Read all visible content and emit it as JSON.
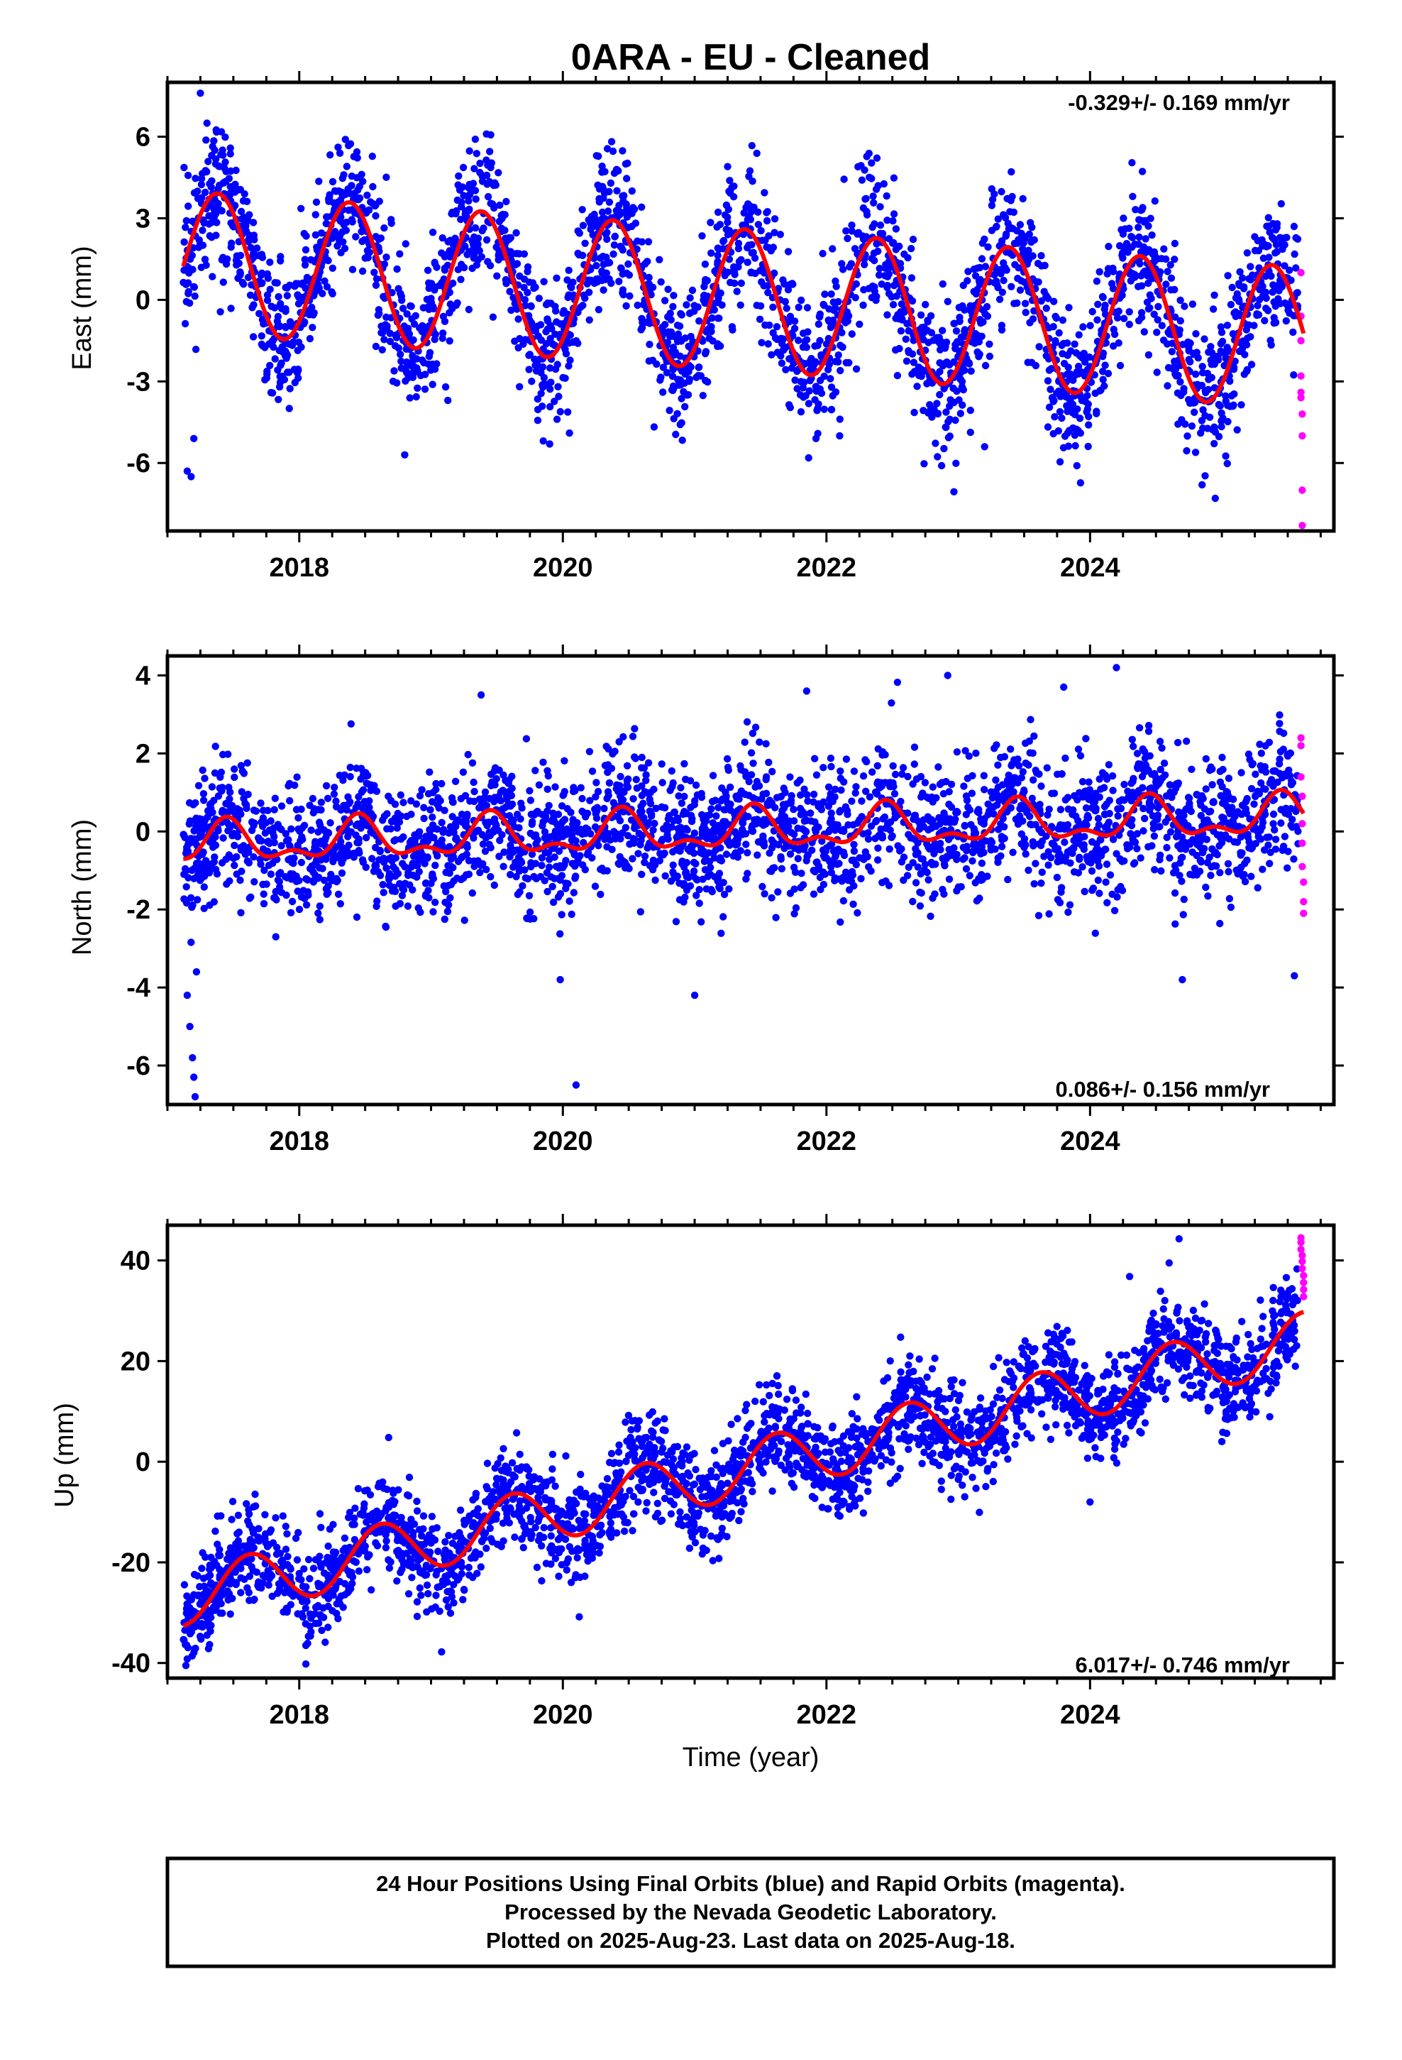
{
  "title": "0ARA  - EU - Cleaned",
  "colors": {
    "final": "#0000ff",
    "rapid": "#ff00ff",
    "model": "#ff0000",
    "frame": "#000000"
  },
  "chart_data": [
    {
      "type": "scatter",
      "id": "east",
      "ylabel": "East (mm)",
      "ylim": [
        -8.5,
        8.0
      ],
      "yticks": [
        "6",
        "3",
        "0",
        "-3",
        "-6"
      ],
      "yticks_values": [
        6,
        3,
        0,
        -3,
        -6
      ],
      "xlim": [
        2017.0,
        2025.85
      ],
      "xticks": [
        "2018",
        "2020",
        "2022",
        "2024"
      ],
      "xticks_values": [
        2018,
        2020,
        2022,
        2024
      ],
      "rate_label": "-0.329+/- 0.169 mm/yr",
      "rate_position": "top-right",
      "model": {
        "offset": 1.4,
        "rate": -0.329,
        "amplitude": 2.6,
        "phase_peak": 0.38,
        "x_start": 2017.12,
        "x_end": 2025.62
      },
      "final_series": {
        "x_start": 2017.12,
        "x_end": 2025.58,
        "noise_sd": 1.3,
        "outliers": [
          [
            2017.15,
            -6.3
          ],
          [
            2017.18,
            -6.5
          ],
          [
            2017.2,
            -5.1
          ],
          [
            2017.25,
            7.6
          ],
          [
            2017.3,
            6.5
          ],
          [
            2018.35,
            5.9
          ],
          [
            2018.8,
            -5.7
          ],
          [
            2019.9,
            -5.3
          ],
          [
            2020.05,
            -4.9
          ],
          [
            2021.25,
            4.9
          ],
          [
            2022.1,
            -5.0
          ],
          [
            2023.2,
            -5.4
          ],
          [
            2023.9,
            -6.1
          ],
          [
            2024.85,
            -6.8
          ],
          [
            2024.95,
            -7.3
          ]
        ]
      },
      "rapid_series": {
        "x": [
          2025.6,
          2025.6,
          2025.6,
          2025.6,
          2025.6,
          2025.6,
          2025.61,
          2025.61,
          2025.61,
          2025.61
        ],
        "y": [
          1.0,
          -0.6,
          -1.5,
          -2.8,
          -3.4,
          -3.6,
          -4.2,
          -5.0,
          -7.0,
          -8.3
        ]
      }
    },
    {
      "type": "scatter",
      "id": "north",
      "ylabel": "North (mm)",
      "ylim": [
        -7.0,
        4.5
      ],
      "yticks": [
        "4",
        "2",
        "0",
        "-2",
        "-4",
        "-6"
      ],
      "yticks_values": [
        4,
        2,
        0,
        -2,
        -4,
        -6
      ],
      "xlim": [
        2017.0,
        2025.85
      ],
      "xticks": [
        "2018",
        "2020",
        "2022",
        "2024"
      ],
      "xticks_values": [
        2018,
        2020,
        2022,
        2024
      ],
      "rate_label": "0.086+/- 0.156 mm/yr",
      "rate_position": "bottom-right",
      "model": {
        "offset": -0.35,
        "rate": 0.086,
        "amplitude": 0.45,
        "semiannual": 0.25,
        "phase_peak": 0.45,
        "x_start": 2017.12,
        "x_end": 2025.62
      },
      "final_series": {
        "x_start": 2017.12,
        "x_end": 2025.58,
        "noise_sd": 0.85,
        "outliers": [
          [
            2017.15,
            -4.2
          ],
          [
            2017.17,
            -5.0
          ],
          [
            2017.19,
            -5.8
          ],
          [
            2017.2,
            -6.3
          ],
          [
            2017.21,
            -6.8
          ],
          [
            2017.22,
            -3.6
          ],
          [
            2019.38,
            3.5
          ],
          [
            2019.98,
            -3.8
          ],
          [
            2020.1,
            -6.5
          ],
          [
            2021.0,
            -4.2
          ],
          [
            2021.85,
            3.6
          ],
          [
            2022.92,
            4.0
          ],
          [
            2023.8,
            3.7
          ],
          [
            2024.2,
            4.2
          ],
          [
            2024.7,
            -3.8
          ],
          [
            2025.55,
            -3.7
          ]
        ]
      },
      "rapid_series": {
        "x": [
          2025.6,
          2025.6,
          2025.6,
          2025.61,
          2025.61,
          2025.61,
          2025.61,
          2025.62,
          2025.62,
          2025.62
        ],
        "y": [
          2.4,
          2.2,
          1.4,
          0.9,
          0.2,
          -0.3,
          -0.9,
          -1.3,
          -1.8,
          -2.1
        ]
      }
    },
    {
      "type": "scatter",
      "id": "up",
      "ylabel": "Up (mm)",
      "ylim": [
        -43,
        47
      ],
      "yticks": [
        "40",
        "20",
        "0",
        "-20",
        "-40"
      ],
      "yticks_values": [
        40,
        20,
        0,
        -20,
        -40
      ],
      "xlim": [
        2017.0,
        2025.85
      ],
      "xticks": [
        "2018",
        "2020",
        "2022",
        "2024"
      ],
      "xticks_values": [
        2018,
        2020,
        2022,
        2024
      ],
      "xlabel": "Time (year)",
      "rate_label": "6.017+/- 0.746 mm/yr",
      "rate_position": "bottom-right",
      "model": {
        "offset": -27,
        "rate": 6.017,
        "amplitude": 5.6,
        "phase_peak": 0.62,
        "x_start": 2017.12,
        "x_end": 2025.62
      },
      "final_series": {
        "x_start": 2017.12,
        "x_end": 2025.58,
        "noise_sd": 4.8,
        "outliers": [
          [
            2017.14,
            -40.5
          ],
          [
            2017.15,
            -39.2
          ],
          [
            2018.05,
            -40.2
          ],
          [
            2019.08,
            -37.8
          ],
          [
            2023.0,
            -3.5
          ],
          [
            2024.0,
            -8.0
          ],
          [
            2024.3,
            36.8
          ],
          [
            2024.6,
            39.5
          ],
          [
            2025.0,
            4.0
          ]
        ]
      },
      "rapid_series": {
        "x": [
          2025.6,
          2025.6,
          2025.6,
          2025.61,
          2025.61,
          2025.61,
          2025.62,
          2025.62,
          2025.62,
          2025.62
        ],
        "y": [
          44.5,
          43.6,
          42.2,
          41.0,
          39.8,
          38.4,
          37.0,
          35.6,
          34.2,
          32.8
        ]
      }
    }
  ],
  "footer": {
    "line1": "24 Hour Positions Using Final Orbits (blue) and Rapid Orbits (magenta).",
    "line2": "Processed by the Nevada Geodetic Laboratory.",
    "line3": "Plotted on 2025-Aug-23. Last data on 2025-Aug-18."
  }
}
